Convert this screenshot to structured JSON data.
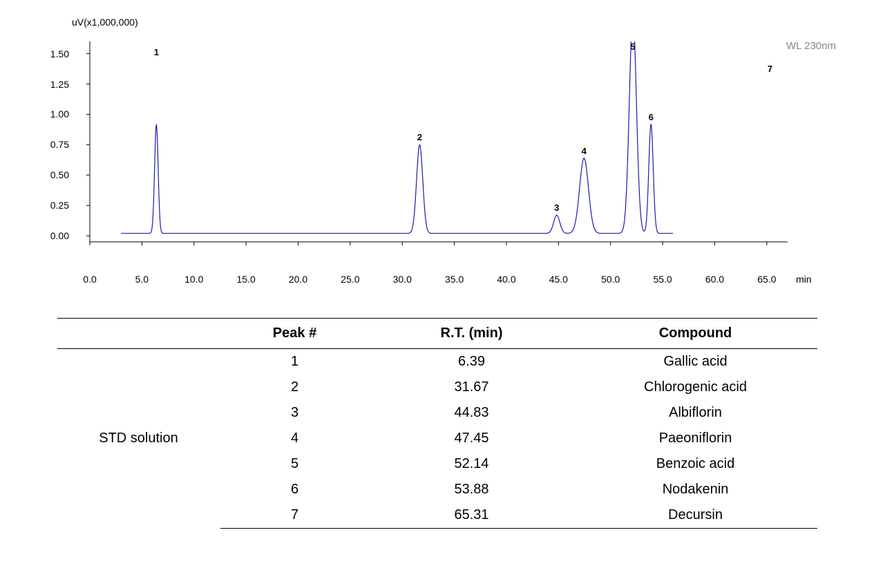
{
  "chart": {
    "type": "chromatogram-line",
    "y_unit_label": "uV(x1,000,000)",
    "x_unit_label": "min",
    "wavelength_label": "WL 230nm",
    "line_color": "#1a1aa8",
    "line_width": 1.2,
    "background_color": "#ffffff",
    "axis_color": "#000000",
    "axis": {
      "x": {
        "min": 0.0,
        "max": 67.0,
        "ticks": [
          0.0,
          5.0,
          10.0,
          15.0,
          20.0,
          25.0,
          30.0,
          35.0,
          40.0,
          45.0,
          50.0,
          55.0,
          60.0,
          65.0
        ],
        "tick_labels": [
          "0.0",
          "5.0",
          "10.0",
          "15.0",
          "20.0",
          "25.0",
          "30.0",
          "35.0",
          "40.0",
          "45.0",
          "50.0",
          "55.0",
          "60.0",
          "65.0"
        ]
      },
      "y": {
        "min": -0.05,
        "max": 1.6,
        "ticks": [
          0.0,
          0.25,
          0.5,
          0.75,
          1.0,
          1.25,
          1.5
        ],
        "tick_labels": [
          "0.00",
          "0.25",
          "0.50",
          "0.75",
          "1.00",
          "1.25",
          "1.50"
        ]
      }
    },
    "baseline": 0.02,
    "data_x_start": 3.0,
    "data_x_end": 56.0,
    "peaks": [
      {
        "id": "1",
        "rt": 6.39,
        "height": 0.9,
        "width": 0.4,
        "label_y_offset": -4,
        "label_above_chart": true,
        "label_y_abs": 48
      },
      {
        "id": "2",
        "rt": 31.67,
        "height": 0.73,
        "width": 0.7,
        "label_y_offset": -4,
        "label_above_chart": false
      },
      {
        "id": "3",
        "rt": 44.83,
        "height": 0.15,
        "width": 0.7,
        "label_y_offset": -6,
        "label_above_chart": false
      },
      {
        "id": "4",
        "rt": 47.45,
        "height": 0.62,
        "width": 1.0,
        "label_y_offset": -4,
        "label_above_chart": false
      },
      {
        "id": "5",
        "rt": 52.14,
        "height": 1.8,
        "width": 0.8,
        "label_y_offset": -4,
        "label_above_chart": true,
        "label_y_abs": 40
      },
      {
        "id": "6",
        "rt": 53.88,
        "height": 0.9,
        "width": 0.5,
        "label_y_offset": -4,
        "label_above_chart": false
      },
      {
        "id": "7",
        "rt": 65.31,
        "height": 0.0,
        "width": 0.0,
        "label_y_offset": -4,
        "label_above_chart": true,
        "label_y_abs": 72
      }
    ]
  },
  "table": {
    "columns": [
      "",
      "Peak #",
      "R.T. (min)",
      "Compound"
    ],
    "rowgroup_label": "STD solution",
    "rows": [
      {
        "peak": "1",
        "rt": "6.39",
        "compound": "Gallic acid"
      },
      {
        "peak": "2",
        "rt": "31.67",
        "compound": "Chlorogenic acid"
      },
      {
        "peak": "3",
        "rt": "44.83",
        "compound": "Albiflorin"
      },
      {
        "peak": "4",
        "rt": "47.45",
        "compound": "Paeoniflorin"
      },
      {
        "peak": "5",
        "rt": "52.14",
        "compound": "Benzoic acid"
      },
      {
        "peak": "6",
        "rt": "53.88",
        "compound": "Nodakenin"
      },
      {
        "peak": "7",
        "rt": "65.31",
        "compound": "Decursin"
      }
    ]
  }
}
